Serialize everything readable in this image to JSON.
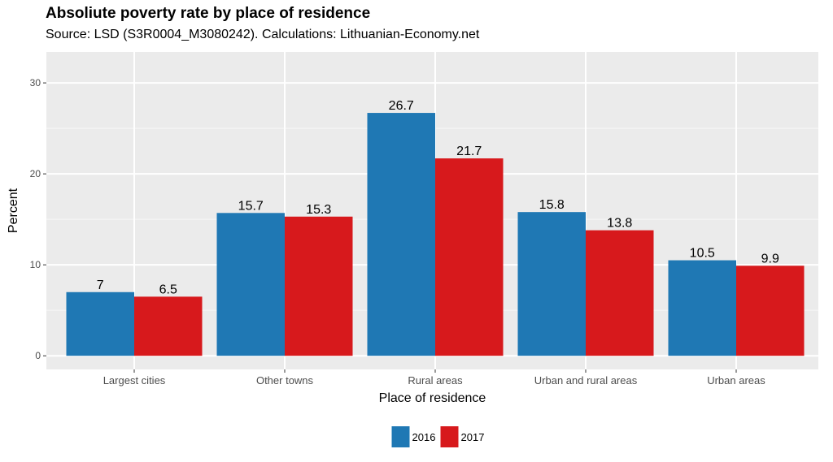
{
  "chart_data": {
    "type": "bar",
    "title": "Absoliute poverty rate by place of residence",
    "subtitle": "Source: LSD (S3R0004_M3080242). Calculations: Lithuanian-Economy.net",
    "xlabel": "Place of residence",
    "ylabel": "Percent",
    "categories": [
      "Largest cities",
      "Other towns",
      "Rural areas",
      "Urban and rural areas",
      "Urban areas"
    ],
    "series": [
      {
        "name": "2016",
        "color": "#1f78b4",
        "values": [
          7,
          15.7,
          26.7,
          15.8,
          10.5
        ],
        "labels": [
          "7",
          "15.7",
          "26.7",
          "15.8",
          "10.5"
        ]
      },
      {
        "name": "2017",
        "color": "#d7191c",
        "values": [
          6.5,
          15.3,
          21.7,
          13.8,
          9.9
        ],
        "labels": [
          "6.5",
          "15.3",
          "21.7",
          "13.8",
          "9.9"
        ]
      }
    ],
    "ylim": [
      -1.5,
      33.4
    ],
    "yticks": [
      0,
      10,
      20,
      30
    ],
    "grid": true,
    "legend_position": "bottom",
    "panel_background": "#ebebeb"
  }
}
